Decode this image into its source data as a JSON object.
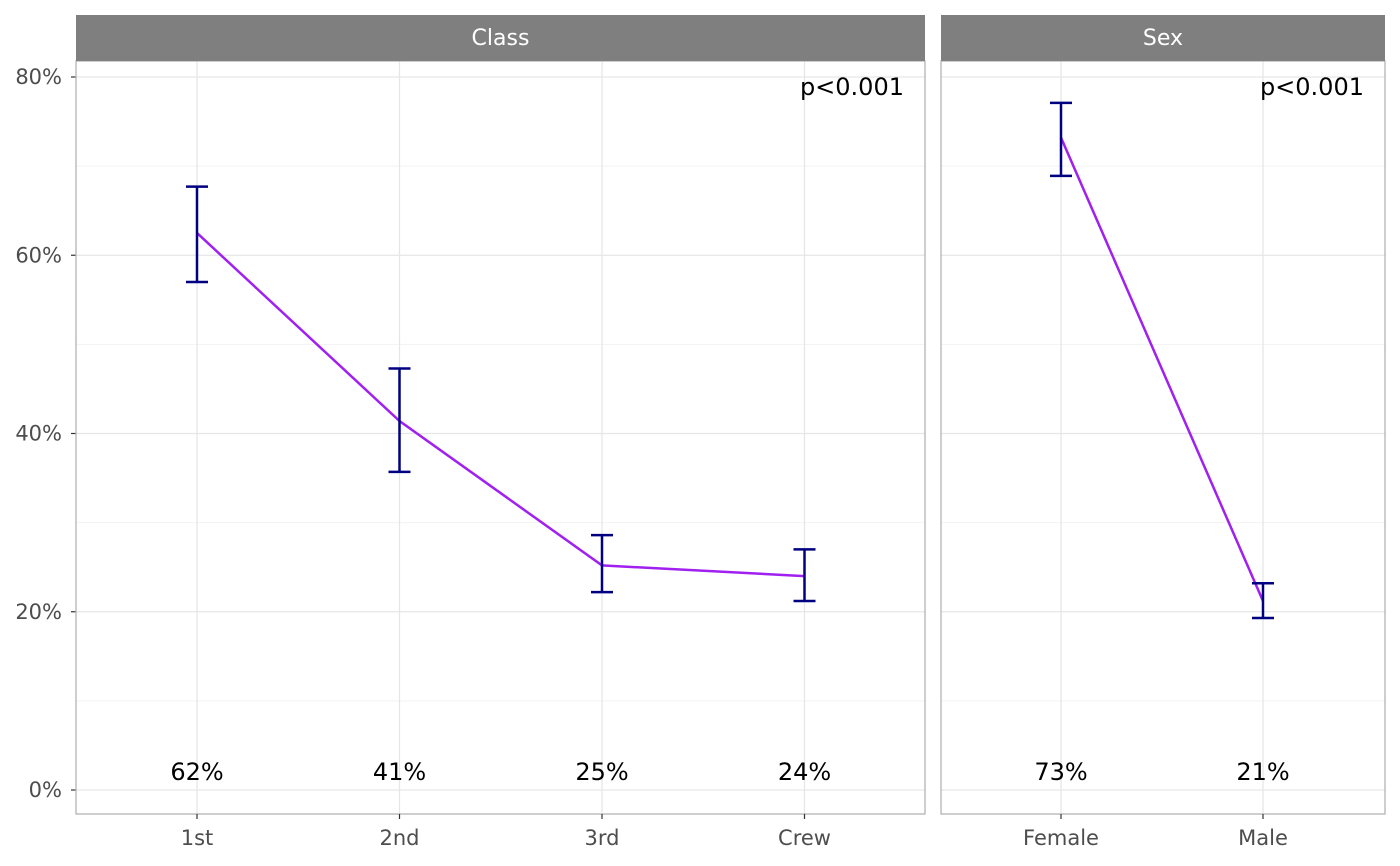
{
  "colors": {
    "strip_fill": "#7f7f7f",
    "panel_border": "#b3b3b3",
    "grid_major": "#e6e6e6",
    "grid_minor": "#f2f2f2",
    "line": "#a020f0",
    "errorbar": "#000080"
  },
  "chart_data": {
    "type": "line",
    "y_axis": {
      "min": 0,
      "max": 0.8,
      "ticks": [
        0,
        0.2,
        0.4,
        0.6,
        0.8
      ],
      "tick_labels": [
        "0%",
        "20%",
        "40%",
        "60%",
        "80%"
      ]
    },
    "panels": [
      {
        "strip": "Class",
        "p_value": "p<0.001",
        "categories": [
          "1st",
          "2nd",
          "3rd",
          "Crew"
        ],
        "values": [
          0.625,
          0.414,
          0.252,
          0.24
        ],
        "lower": [
          0.57,
          0.357,
          0.222,
          0.212
        ],
        "upper": [
          0.677,
          0.473,
          0.286,
          0.27
        ],
        "labels": [
          "62%",
          "41%",
          "25%",
          "24%"
        ]
      },
      {
        "strip": "Sex",
        "p_value": "p<0.001",
        "categories": [
          "Female",
          "Male"
        ],
        "values": [
          0.732,
          0.212
        ],
        "lower": [
          0.689,
          0.193
        ],
        "upper": [
          0.771,
          0.232
        ],
        "labels": [
          "73%",
          "21%"
        ]
      }
    ]
  }
}
